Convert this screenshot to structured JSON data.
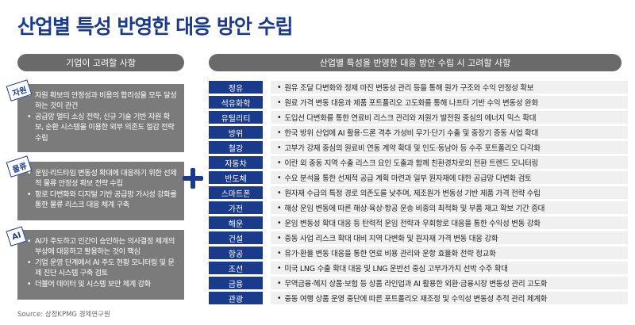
{
  "title": "산업별 특성 반영한 대응 방안 수립",
  "left_header": "기업이 고려할 사항",
  "right_header": "산업별 특성을 반영한 대응 방안 수립 시 고려할 사항",
  "left_sections": [
    {
      "tag": "자원",
      "bullets": [
        "자원 확보의 안정성과 비용의 합리성을 모두 달성하는 것이 관건",
        "공급망 멀티 소싱 전략, 신규 기술 기반 자원 확보, 순환 시스템을 이용한 외부 의존도 절감 전략 수립"
      ]
    },
    {
      "tag": "물류",
      "bullets": [
        "운임·리드타임 변동성 확대에 대응하기 위한 선제적 물류 안정성 확보 전략 수립",
        "항로 다변화와 디지털 기반 공급망 가시성 강화를 통한 물류 리스크 대응 체계 구축"
      ]
    },
    {
      "tag": "AI",
      "bullets": [
        "AI가 주도하고 인간이 승인하는 의사결정 체계의 부상에 대응하고 활용하는 것이 핵심",
        "기업 운영 단계에서 AI 주도 현황 모니터링 및 문제 진단 시스템 구축 검토",
        "더불어 데이터 및 시스템 보안 체계 강화"
      ]
    }
  ],
  "industries": [
    {
      "name": "정유",
      "desc": "원유 조달 다변화와 정제 마진 변동성 관리 등을 통해 원가 구조와 수익 안정성 확보"
    },
    {
      "name": "석유화학",
      "desc": "원료 가격 변동 대응과 제품 포트폴리오 고도화를 통해 나프타 기반 수익 변동성 완화"
    },
    {
      "name": "유틸리티",
      "desc": "도입선 다변화를 통한 연료비 리스크 관리와 저원가 발전원 중심의 에너지 믹스 확대"
    },
    {
      "name": "방위",
      "desc": "한국 방위 산업에 AI 활용·드론 격추 가성비 무기·단기 수출 및 중장기 증동 사업 확대"
    },
    {
      "name": "철강",
      "desc": "고부가 강재 중심의 원료비 연동 계약 확대 및 인도·동남아 등 수주 포트폴리오 다각화"
    },
    {
      "name": "자동차",
      "desc": "이란 외 중동 지역 수출 리스크 요인 도출과 함께 친환경차로의 전환 트렌드 모니터링"
    },
    {
      "name": "반도체",
      "desc": "수요 분석을 통한 선제적 공급 계획 마련과 일부 원자재에 대한 공급망 다변화 검토"
    },
    {
      "name": "스마트폰",
      "desc": "원자재 수급의 특정 경로 의존도를 낮추며, 제조원가 변동성 기반 제품 가격 전략 수립"
    },
    {
      "name": "가전",
      "desc": "해상 운임 변동에 따른 해상·육상·항공 운송 비중의 최적화 및 부품 재고 확보 기간 증대"
    },
    {
      "name": "해운",
      "desc": "운임 변동성 확대 대응 등 탄력적 운임 전략과 우회항로 대응을 통한 수익성 변동 강화"
    },
    {
      "name": "건설",
      "desc": "중동 사업 리스크 확대 대비 지역 다변화 및 원자재 가격 변동 대응 강화"
    },
    {
      "name": "항공",
      "desc": "유가·환율 변동 대응을 통한 연료 비용 관리와 운항 효율화 전략 정교화"
    },
    {
      "name": "조선",
      "desc": "미국 LNG 수출 확대 대응 및 LNG 운반선 중심 고부가가치 선박 수주 확대"
    },
    {
      "name": "금융",
      "desc": "무역금융·헤지 상품·보험 등 상품 라인업과 AI 활용한 외환·금융시장 변동성 관리 고도화"
    },
    {
      "name": "관광",
      "desc": "중동 여행 상품 운영 중단에 따른 포트폴리오 재조정 및 수익성 변동성 추적 관리 체계화"
    }
  ],
  "source": "Source: 삼정KPMG 경제연구원",
  "colors": {
    "navy": "#1a3b8c",
    "gray_box": "#7b7b7b",
    "pill": "#6a6a6a",
    "row_bg": "#f0f0f0"
  }
}
